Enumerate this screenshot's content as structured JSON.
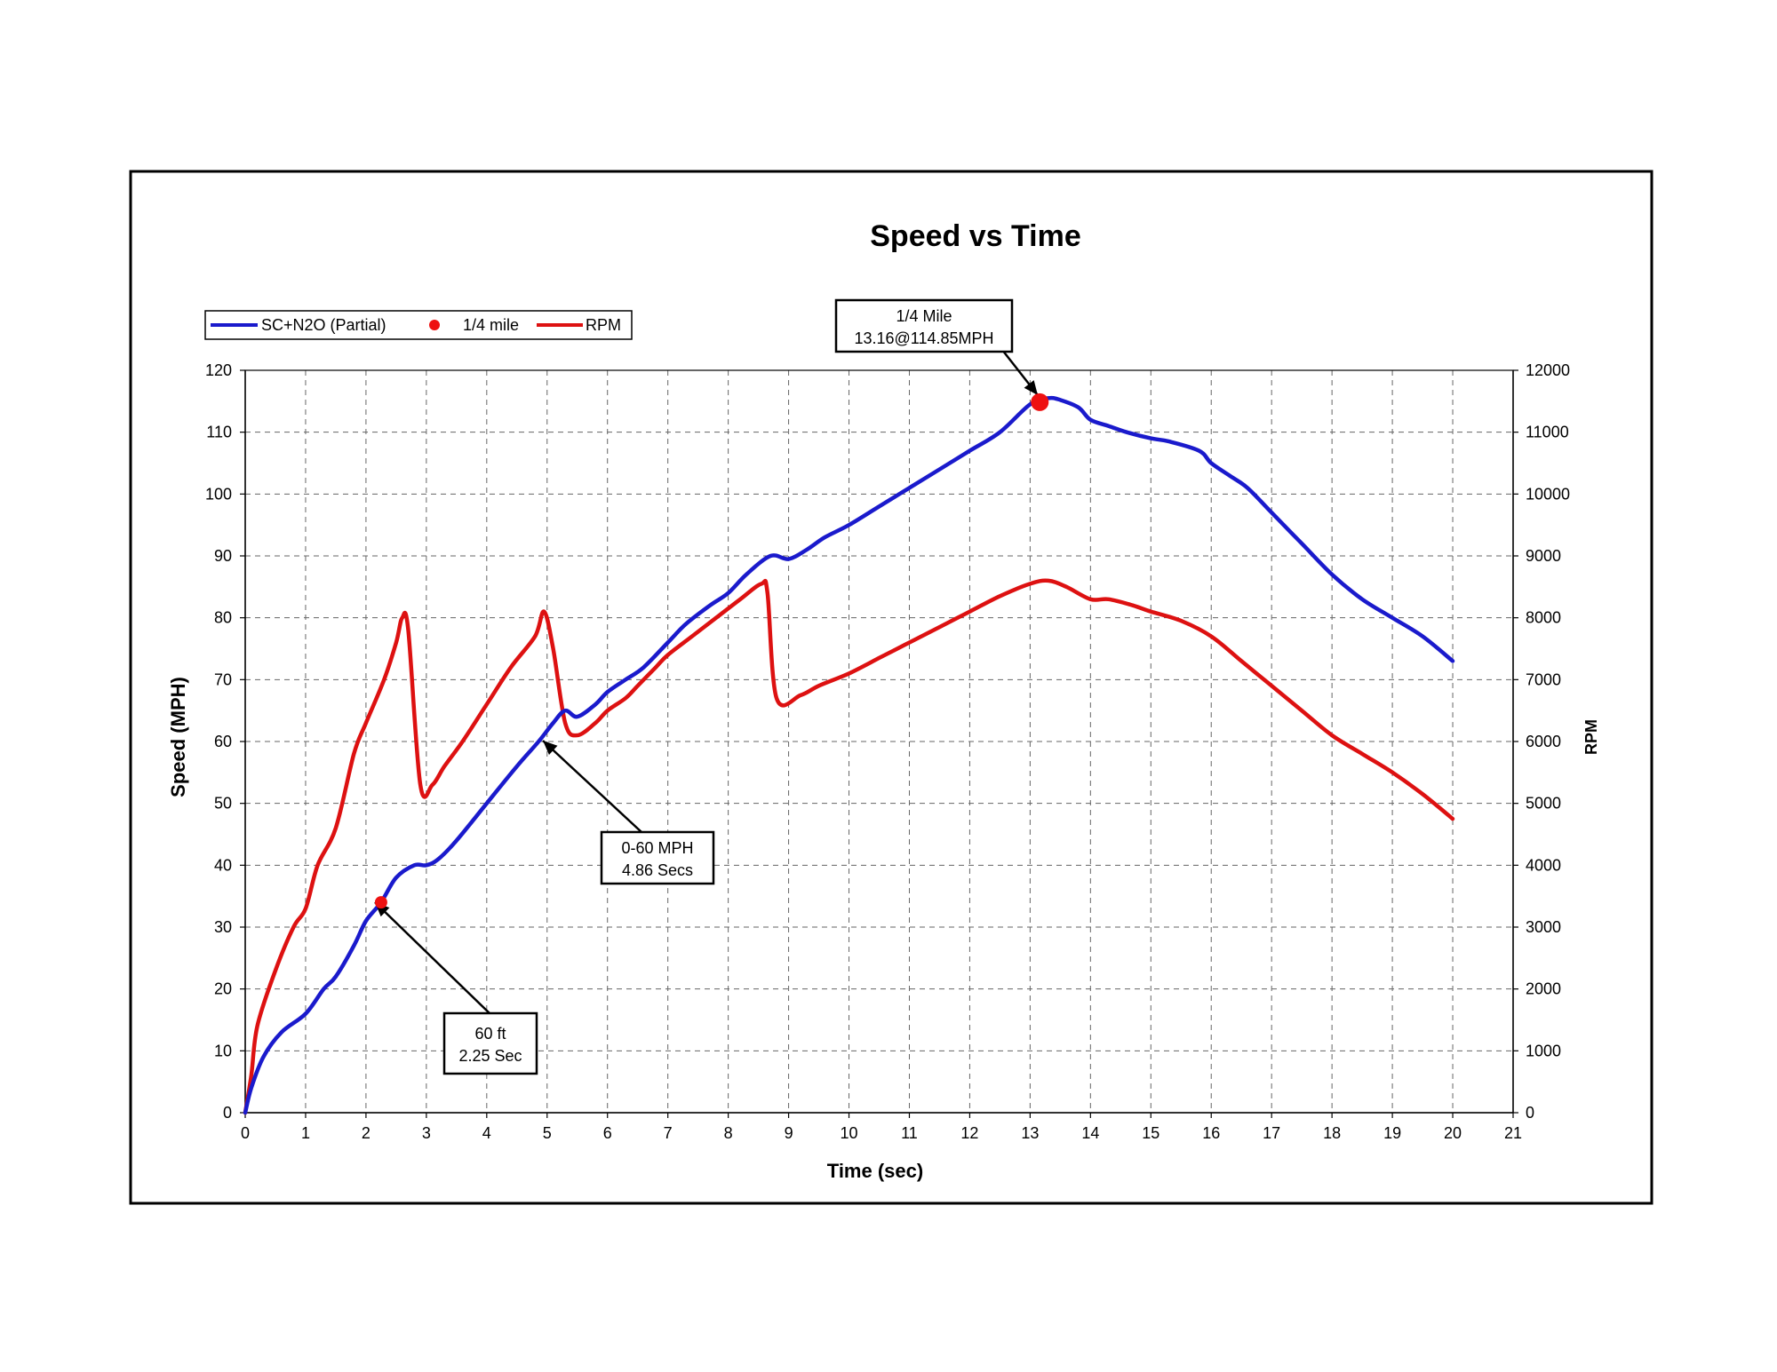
{
  "chart_data": {
    "type": "line",
    "title": "Speed vs Time",
    "xlabel": "Time (sec)",
    "ylabel": "Speed (MPH)",
    "y2label": "RPM",
    "xlim": [
      0,
      21
    ],
    "ylim": [
      0,
      120
    ],
    "y2lim": [
      0,
      12000
    ],
    "xticks": [
      0,
      1,
      2,
      3,
      4,
      5,
      6,
      7,
      8,
      9,
      10,
      11,
      12,
      13,
      14,
      15,
      16,
      17,
      18,
      19,
      20,
      21
    ],
    "yticks": [
      0,
      10,
      20,
      30,
      40,
      50,
      60,
      70,
      80,
      90,
      100,
      110,
      120
    ],
    "y2ticks": [
      0,
      1000,
      2000,
      3000,
      4000,
      5000,
      6000,
      7000,
      8000,
      9000,
      10000,
      11000,
      12000
    ],
    "grid": true,
    "legend_position": "top-left",
    "legend": [
      "SC+N2O (Partial)",
      "1/4 mile",
      "RPM"
    ],
    "colors": {
      "speed": "#1a1acc",
      "rpm": "#dd1111",
      "marker": "#ee1111"
    },
    "series": [
      {
        "name": "SC+N2O (Partial)",
        "axis": "left",
        "x": [
          0,
          0.1,
          0.3,
          0.6,
          1.0,
          1.3,
          1.5,
          1.8,
          2.0,
          2.25,
          2.5,
          2.8,
          3.0,
          3.2,
          3.5,
          4.0,
          4.5,
          4.86,
          5.1,
          5.3,
          5.5,
          5.8,
          6.0,
          6.3,
          6.6,
          7.0,
          7.3,
          7.7,
          8.0,
          8.3,
          8.7,
          9.0,
          9.3,
          9.6,
          10.0,
          10.5,
          11.0,
          11.5,
          12.0,
          12.5,
          13.0,
          13.3,
          13.5,
          13.8,
          14.0,
          14.3,
          14.6,
          15.0,
          15.3,
          15.8,
          16.0,
          16.3,
          16.6,
          17.0,
          17.5,
          18.0,
          18.5,
          19.0,
          19.5,
          20.0
        ],
        "values": [
          0,
          4,
          9,
          13,
          16,
          20,
          22,
          27,
          31,
          34,
          38,
          40,
          40,
          41,
          44,
          50,
          56,
          60,
          63,
          65,
          64,
          66,
          68,
          70,
          72,
          76,
          79,
          82,
          84,
          87,
          90,
          89.5,
          91,
          93,
          95,
          98,
          101,
          104,
          107,
          110,
          114.5,
          115.5,
          115.2,
          114,
          112,
          111,
          110,
          109,
          108.5,
          107,
          105,
          103,
          101,
          97,
          92,
          87,
          83,
          80,
          77,
          73
        ]
      },
      {
        "name": "RPM",
        "axis": "right",
        "x": [
          0,
          0.1,
          0.2,
          0.5,
          0.8,
          1.0,
          1.2,
          1.5,
          1.8,
          2.0,
          2.3,
          2.5,
          2.6,
          2.7,
          2.9,
          3.1,
          3.3,
          3.6,
          4.0,
          4.4,
          4.8,
          4.95,
          5.1,
          5.3,
          5.5,
          5.8,
          6.0,
          6.3,
          6.5,
          6.8,
          7.0,
          7.4,
          7.8,
          8.2,
          8.55,
          8.65,
          8.8,
          9.2,
          9.5,
          10.0,
          10.5,
          11.0,
          11.5,
          12.0,
          12.5,
          13.0,
          13.3,
          13.6,
          14.0,
          14.3,
          14.7,
          15.0,
          15.5,
          16.0,
          16.5,
          17.0,
          17.5,
          18.0,
          18.5,
          19.0,
          19.5,
          20.0
        ],
        "values": [
          0,
          600,
          1400,
          2300,
          3000,
          3300,
          4000,
          4600,
          5800,
          6300,
          7000,
          7600,
          8000,
          7800,
          5300,
          5300,
          5600,
          6000,
          6600,
          7200,
          7700,
          8100,
          7500,
          6300,
          6100,
          6300,
          6500,
          6700,
          6900,
          7200,
          7400,
          7700,
          8000,
          8300,
          8550,
          8400,
          6700,
          6750,
          6900,
          7100,
          7350,
          7600,
          7850,
          8100,
          8350,
          8550,
          8600,
          8500,
          8300,
          8300,
          8200,
          8100,
          7950,
          7700,
          7300,
          6900,
          6500,
          6100,
          5800,
          5500,
          5150,
          4750
        ]
      }
    ],
    "points": [
      {
        "name": "60 ft",
        "x": 2.25,
        "y": 34,
        "label": "60 ft",
        "sublabel": "2.25 Sec"
      },
      {
        "name": "1/4 mile",
        "x": 13.16,
        "y": 114.85,
        "label": "1/4 Mile",
        "sublabel": "13.16@114.85MPH"
      }
    ],
    "annotations": [
      {
        "line1": "60 ft",
        "line2": "2.25 Sec",
        "at_x": 2.25,
        "at_y": 34
      },
      {
        "line1": "0-60 MPH",
        "line2": "4.86 Secs",
        "at_x": 4.86,
        "at_y": 59.5
      },
      {
        "line1": "1/4 Mile",
        "line2": "13.16@114.85MPH",
        "at_x": 13.16,
        "at_y": 114.85
      }
    ]
  }
}
